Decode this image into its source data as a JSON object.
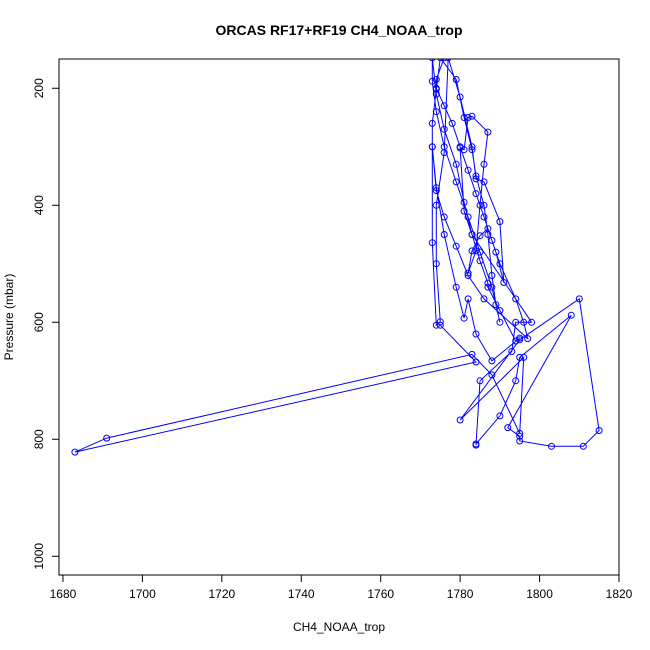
{
  "chart_data": {
    "type": "line",
    "title": "ORCAS RF17+RF19 CH4_NOAA_trop",
    "xlabel": "CH4_NOAA_trop",
    "ylabel": "Pressure (mbar)",
    "xlim": [
      1679,
      1820
    ],
    "ylim": [
      1032,
      150
    ],
    "y_reversed": true,
    "x_ticks": [
      1680,
      1700,
      1720,
      1740,
      1760,
      1780,
      1800,
      1820
    ],
    "y_ticks": [
      200,
      400,
      600,
      800,
      1000
    ],
    "grid": false,
    "legend": "none",
    "color": "#0000ff",
    "series": [
      {
        "points": [
          [
            1776,
            148
          ],
          [
            1774,
            185
          ],
          [
            1774,
            200
          ],
          [
            1776,
            230
          ],
          [
            1778,
            260
          ],
          [
            1780,
            300
          ],
          [
            1782,
            340
          ],
          [
            1784,
            380
          ],
          [
            1786,
            420
          ],
          [
            1788,
            460
          ],
          [
            1790,
            500
          ],
          [
            1794,
            560
          ],
          [
            1796,
            600
          ],
          [
            1797,
            628
          ],
          [
            1786,
            560
          ],
          [
            1782,
            520
          ],
          [
            1779,
            470
          ],
          [
            1776,
            420
          ],
          [
            1774,
            375
          ],
          [
            1773,
            300
          ],
          [
            1773,
            260
          ],
          [
            1774,
            202
          ],
          [
            1775,
            148
          ],
          [
            1779,
            185
          ],
          [
            1781,
            250
          ],
          [
            1783,
            305
          ],
          [
            1784,
            350
          ],
          [
            1786,
            400
          ],
          [
            1787,
            450
          ],
          [
            1788,
            520
          ],
          [
            1789,
            570
          ],
          [
            1790,
            600
          ],
          [
            1788,
            540
          ],
          [
            1785,
            480
          ],
          [
            1782,
            420
          ],
          [
            1779,
            360
          ],
          [
            1776,
            300
          ],
          [
            1774,
            240
          ],
          [
            1773,
            188
          ],
          [
            1773,
            148
          ],
          [
            1774,
            210
          ],
          [
            1776,
            270
          ],
          [
            1779,
            330
          ],
          [
            1781,
            395
          ],
          [
            1783,
            450
          ],
          [
            1785,
            495
          ],
          [
            1787,
            533
          ],
          [
            1787,
            540
          ],
          [
            1790,
            580
          ],
          [
            1794,
            632
          ],
          [
            1795,
            627
          ],
          [
            1788,
            666
          ],
          [
            1784,
            620
          ],
          [
            1782,
            560
          ],
          [
            1781,
            593
          ],
          [
            1779,
            540
          ],
          [
            1776,
            450
          ],
          [
            1774,
            370
          ],
          [
            1773,
            300
          ],
          [
            1773,
            464
          ],
          [
            1774,
            605
          ],
          [
            1775,
            599
          ],
          [
            1774,
            500
          ],
          [
            1774,
            400
          ],
          [
            1776,
            310
          ],
          [
            1777,
            148
          ],
          [
            1780,
            215
          ],
          [
            1783,
            300
          ],
          [
            1784,
            355
          ],
          [
            1786,
            360
          ],
          [
            1790,
            428
          ],
          [
            1791,
            532
          ],
          [
            1789,
            480
          ],
          [
            1787,
            440
          ],
          [
            1785,
            452
          ],
          [
            1783,
            478
          ],
          [
            1782,
            516
          ],
          [
            1784,
            478
          ],
          [
            1785,
            400
          ],
          [
            1786,
            330
          ],
          [
            1787,
            275
          ],
          [
            1783,
            248
          ],
          [
            1782,
            250
          ],
          [
            1781,
            305
          ],
          [
            1780,
            302
          ],
          [
            1781,
            410
          ],
          [
            1783,
            450
          ],
          [
            1798,
            600
          ],
          [
            1794,
            600
          ],
          [
            1793,
            650
          ],
          [
            1785,
            700
          ],
          [
            1784,
            810
          ],
          [
            1784,
            808
          ],
          [
            1790,
            760
          ],
          [
            1794,
            700
          ],
          [
            1795,
            660
          ],
          [
            1808,
            588
          ],
          [
            1792,
            780
          ],
          [
            1795,
            795
          ],
          [
            1795,
            803
          ],
          [
            1803,
            812
          ],
          [
            1811,
            812
          ],
          [
            1815,
            785
          ],
          [
            1810,
            560
          ],
          [
            1795,
            630
          ],
          [
            1780,
            767
          ],
          [
            1796,
            660
          ],
          [
            1795,
            790
          ],
          [
            1788,
            690
          ],
          [
            1783,
            655
          ],
          [
            1691,
            798
          ],
          [
            1683,
            822
          ],
          [
            1784,
            668
          ],
          [
            1775,
            605
          ]
        ]
      }
    ]
  }
}
